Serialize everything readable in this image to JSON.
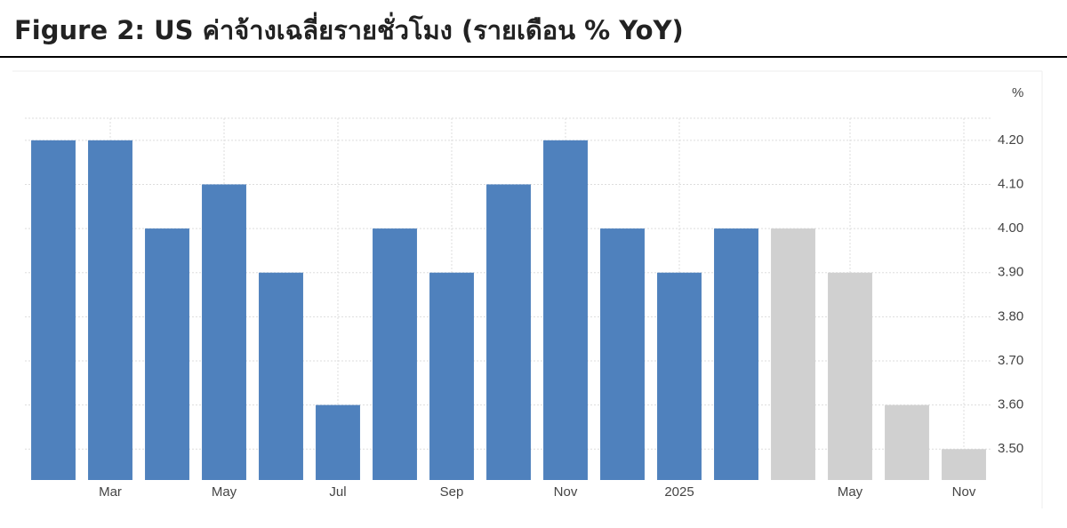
{
  "chart_data": {
    "type": "bar",
    "title": "Figure 2: US ค่าจ้างเฉลี่ยรายชั่วโมง (รายเดือน % YoY)",
    "unit": "%",
    "categories": [
      null,
      "Mar",
      null,
      "May",
      null,
      "Jul",
      null,
      "Sep",
      null,
      "Nov",
      null,
      "2025",
      null,
      null,
      "May",
      null,
      "Nov"
    ],
    "series": [
      {
        "color": "#4f81bd",
        "values": [
          4.2,
          4.2,
          4.0,
          4.1,
          3.9,
          3.6,
          4.0,
          3.9,
          4.1,
          4.2,
          4.0,
          3.9,
          4.0,
          null,
          null,
          null,
          null
        ]
      },
      {
        "color": "#d0d0d0",
        "values": [
          null,
          null,
          null,
          null,
          null,
          null,
          null,
          null,
          null,
          null,
          null,
          null,
          null,
          4.0,
          3.9,
          3.6,
          3.5
        ]
      }
    ],
    "ylim": [
      3.43,
      4.25
    ],
    "yticks": [
      {
        "value": 3.5,
        "label": "3.50"
      },
      {
        "value": 3.6,
        "label": "3.60"
      },
      {
        "value": 3.7,
        "label": "3.70"
      },
      {
        "value": 3.8,
        "label": "3.80"
      },
      {
        "value": 3.9,
        "label": "3.90"
      },
      {
        "value": 4.0,
        "label": "4.00"
      },
      {
        "value": 4.1,
        "label": "4.10"
      },
      {
        "value": 4.2,
        "label": "4.20"
      }
    ],
    "grid": true
  }
}
